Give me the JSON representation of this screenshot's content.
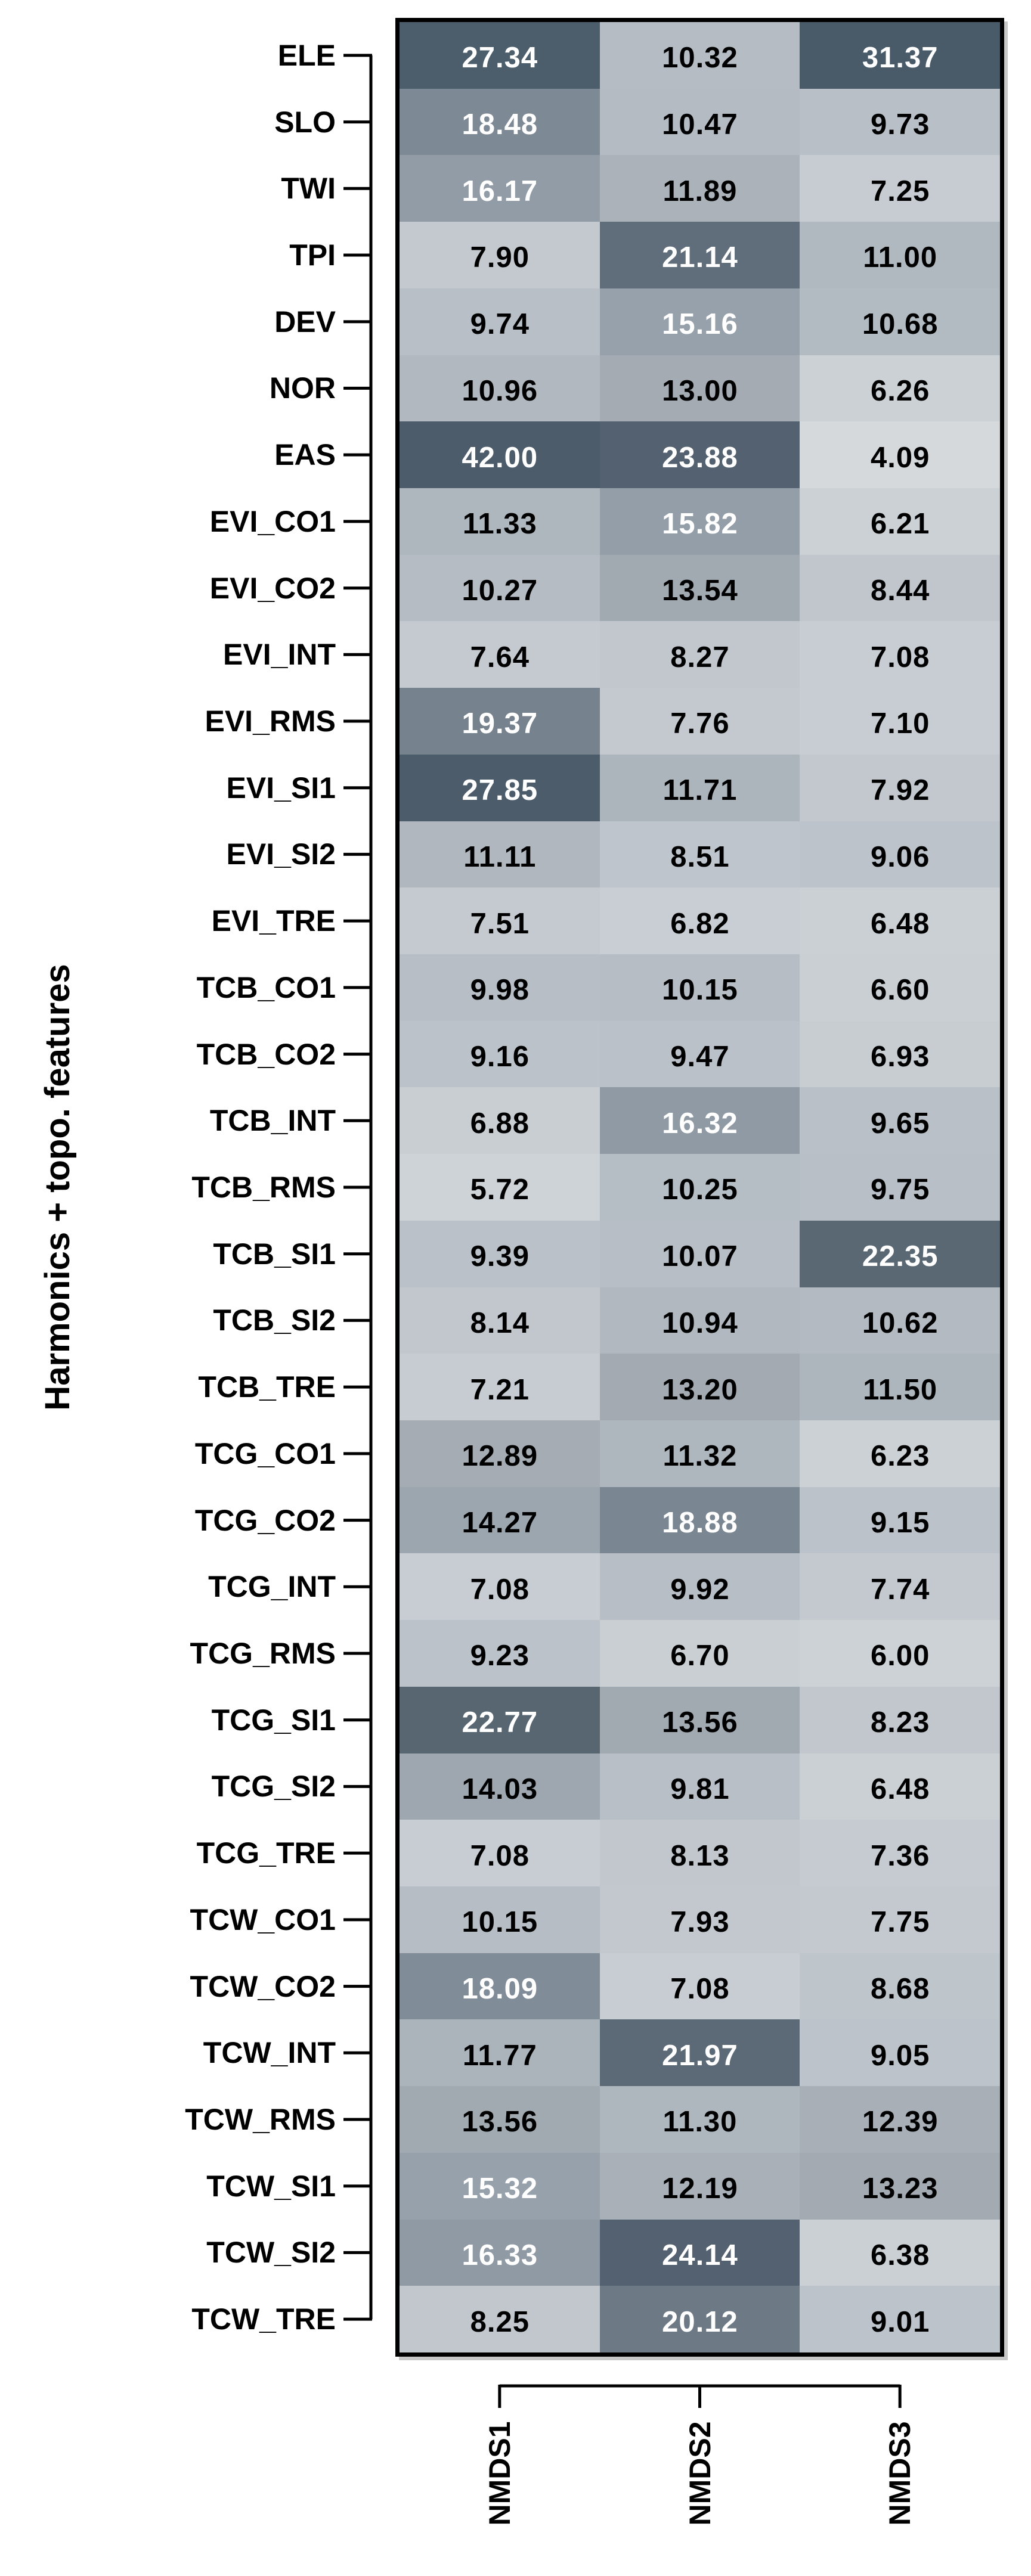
{
  "figure": {
    "y_axis_title": "Harmonics + topo. features",
    "background_color": "#ffffff",
    "border_color": "#000000",
    "axis_color": "#000000"
  },
  "chart_data": {
    "type": "heatmap",
    "title": "",
    "xlabel": "",
    "ylabel": "Harmonics + topo. features",
    "legend": "none",
    "grid": false,
    "columns": [
      "NMDS1",
      "NMDS2",
      "NMDS3"
    ],
    "rows": [
      "ELE",
      "SLO",
      "TWI",
      "TPI",
      "DEV",
      "NOR",
      "EAS",
      "EVI_CO1",
      "EVI_CO2",
      "EVI_INT",
      "EVI_RMS",
      "EVI_SI1",
      "EVI_SI2",
      "EVI_TRE",
      "TCB_CO1",
      "TCB_CO2",
      "TCB_INT",
      "TCB_RMS",
      "TCB_SI1",
      "TCB_SI2",
      "TCB_TRE",
      "TCG_CO1",
      "TCG_CO2",
      "TCG_INT",
      "TCG_RMS",
      "TCG_SI1",
      "TCG_SI2",
      "TCG_TRE",
      "TCW_CO1",
      "TCW_CO2",
      "TCW_INT",
      "TCW_RMS",
      "TCW_SI1",
      "TCW_SI2",
      "TCW_TRE"
    ],
    "values": [
      [
        27.34,
        10.32,
        31.37
      ],
      [
        18.48,
        10.47,
        9.73
      ],
      [
        16.17,
        11.89,
        7.25
      ],
      [
        7.9,
        21.14,
        11.0
      ],
      [
        9.74,
        15.16,
        10.68
      ],
      [
        10.96,
        13.0,
        6.26
      ],
      [
        42.0,
        23.88,
        4.09
      ],
      [
        11.33,
        15.82,
        6.21
      ],
      [
        10.27,
        13.54,
        8.44
      ],
      [
        7.64,
        8.27,
        7.08
      ],
      [
        19.37,
        7.76,
        7.1
      ],
      [
        27.85,
        11.71,
        7.92
      ],
      [
        11.11,
        8.51,
        9.06
      ],
      [
        7.51,
        6.82,
        6.48
      ],
      [
        9.98,
        10.15,
        6.6
      ],
      [
        9.16,
        9.47,
        6.93
      ],
      [
        6.88,
        16.32,
        9.65
      ],
      [
        5.72,
        10.25,
        9.75
      ],
      [
        9.39,
        10.07,
        22.35
      ],
      [
        8.14,
        10.94,
        10.62
      ],
      [
        7.21,
        13.2,
        11.5
      ],
      [
        12.89,
        11.32,
        6.23
      ],
      [
        14.27,
        18.88,
        9.15
      ],
      [
        7.08,
        9.92,
        7.74
      ],
      [
        9.23,
        6.7,
        6.0
      ],
      [
        22.77,
        13.56,
        8.23
      ],
      [
        14.03,
        9.81,
        6.48
      ],
      [
        7.08,
        8.13,
        7.36
      ],
      [
        10.15,
        7.93,
        7.75
      ],
      [
        18.09,
        7.08,
        8.68
      ],
      [
        11.77,
        21.97,
        9.05
      ],
      [
        13.56,
        11.3,
        12.39
      ],
      [
        15.32,
        12.19,
        13.23
      ],
      [
        16.33,
        24.14,
        6.38
      ],
      [
        8.25,
        20.12,
        9.01
      ]
    ],
    "value_format_decimals": 2,
    "colormap": {
      "stops": [
        [
          4.0,
          "#d6d9dc"
        ],
        [
          6.0,
          "#cdd2d6"
        ],
        [
          8.0,
          "#c2c8ce"
        ],
        [
          10.0,
          "#b7bec6"
        ],
        [
          11.5,
          "#adb5bd"
        ],
        [
          13.0,
          "#a4abb3"
        ],
        [
          14.5,
          "#9ba5ae"
        ],
        [
          16.0,
          "#929da8"
        ],
        [
          17.5,
          "#85919c"
        ],
        [
          19.5,
          "#75828e"
        ],
        [
          21.0,
          "#616e7b"
        ],
        [
          22.5,
          "#596773"
        ],
        [
          24.0,
          "#536170"
        ],
        [
          26.0,
          "#4e5e6d"
        ],
        [
          30.0,
          "#495a69"
        ],
        [
          42.0,
          "#4c5c6b"
        ]
      ],
      "white_label_min_value": 15,
      "label_color_dark_cells": "#ffffff",
      "label_color_light_cells": "#000000"
    }
  }
}
